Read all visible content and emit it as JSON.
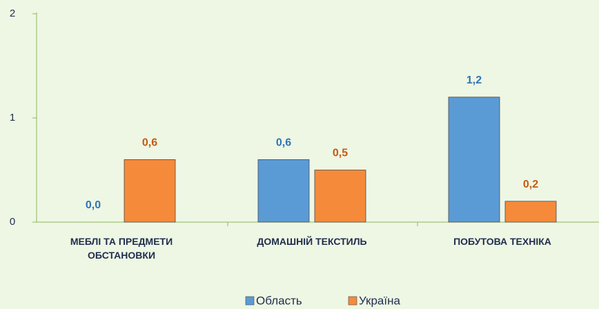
{
  "chart_data": {
    "type": "bar",
    "categories": [
      "МЕБЛІ ТА ПРЕДМЕТИ ОБСТАНОВКИ",
      "ДОМАШНІЙ ТЕКСТИЛЬ",
      "ПОБУТОВА ТЕХНІКА"
    ],
    "series": [
      {
        "name": "Область",
        "color": "#5b9bd5",
        "label_color": "#2e75b6",
        "values": [
          0.0,
          0.6,
          1.2
        ],
        "value_labels": [
          "0,0",
          "0,6",
          "1,2"
        ]
      },
      {
        "name": "Україна",
        "color": "#f58a3a",
        "label_color": "#c55a11",
        "values": [
          0.6,
          0.5,
          0.2
        ],
        "value_labels": [
          "0,6",
          "0,5",
          "0,2"
        ]
      }
    ],
    "ylim": [
      0,
      2
    ],
    "yticks": [
      0,
      1,
      2
    ],
    "legend": "bottom"
  }
}
